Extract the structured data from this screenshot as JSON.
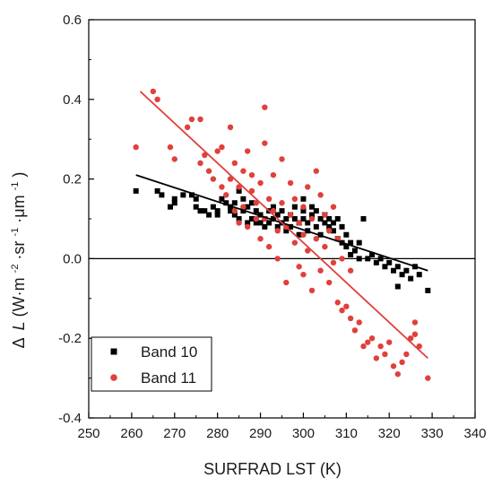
{
  "chart_data": {
    "type": "scatter",
    "title": "",
    "xlabel": "SURFRAD LST (K)",
    "ylabel": {
      "delta": "Δ",
      "var": "L",
      "unit_open": " (W·m",
      "sup1": "-2",
      "mid1": "·sr",
      "sup2": "-1",
      "mid2": "·μm",
      "sup3": "-1",
      "unit_close": ")"
    },
    "xlim": [
      250,
      340
    ],
    "ylim": [
      -0.4,
      0.6
    ],
    "xticks": [
      "250",
      "260",
      "270",
      "280",
      "290",
      "300",
      "310",
      "320",
      "330",
      "340"
    ],
    "yticks": [
      "-0.4",
      "-0.2",
      "0.0",
      "0.2",
      "0.4",
      "0.6"
    ],
    "grid": false,
    "legend_position": "bottom-left",
    "reference_line_y": 0,
    "series": [
      {
        "name": "Band 10",
        "marker": "square",
        "color": "#000000",
        "fit_line": {
          "x": [
            261,
            329
          ],
          "y": [
            0.21,
            -0.03
          ]
        },
        "points": [
          [
            261,
            0.17
          ],
          [
            266,
            0.17
          ],
          [
            267,
            0.16
          ],
          [
            269,
            0.13
          ],
          [
            270,
            0.14
          ],
          [
            270,
            0.15
          ],
          [
            272,
            0.16
          ],
          [
            274,
            0.16
          ],
          [
            275,
            0.13
          ],
          [
            275,
            0.15
          ],
          [
            276,
            0.12
          ],
          [
            277,
            0.12
          ],
          [
            278,
            0.11
          ],
          [
            279,
            0.13
          ],
          [
            280,
            0.12
          ],
          [
            280,
            0.11
          ],
          [
            281,
            0.15
          ],
          [
            282,
            0.14
          ],
          [
            283,
            0.13
          ],
          [
            283,
            0.12
          ],
          [
            284,
            0.14
          ],
          [
            284,
            0.11
          ],
          [
            285,
            0.1
          ],
          [
            285,
            0.17
          ],
          [
            286,
            0.15
          ],
          [
            286,
            0.12
          ],
          [
            287,
            0.13
          ],
          [
            287,
            0.09
          ],
          [
            288,
            0.1
          ],
          [
            288,
            0.14
          ],
          [
            289,
            0.09
          ],
          [
            289,
            0.12
          ],
          [
            290,
            0.09
          ],
          [
            290,
            0.11
          ],
          [
            291,
            0.1
          ],
          [
            291,
            0.08
          ],
          [
            292,
            0.12
          ],
          [
            292,
            0.09
          ],
          [
            293,
            0.1
          ],
          [
            293,
            0.13
          ],
          [
            294,
            0.08
          ],
          [
            294,
            0.11
          ],
          [
            295,
            0.09
          ],
          [
            295,
            0.12
          ],
          [
            296,
            0.1
          ],
          [
            296,
            0.07
          ],
          [
            297,
            0.11
          ],
          [
            297,
            0.08
          ],
          [
            298,
            0.1
          ],
          [
            298,
            0.13
          ],
          [
            299,
            0.09
          ],
          [
            299,
            0.06
          ],
          [
            300,
            0.1
          ],
          [
            300,
            0.12
          ],
          [
            300,
            0.15
          ],
          [
            301,
            0.09
          ],
          [
            301,
            0.07
          ],
          [
            302,
            0.11
          ],
          [
            302,
            0.13
          ],
          [
            303,
            0.08
          ],
          [
            303,
            0.12
          ],
          [
            304,
            0.1
          ],
          [
            304,
            0.06
          ],
          [
            305,
            0.09
          ],
          [
            305,
            0.11
          ],
          [
            306,
            0.08
          ],
          [
            306,
            0.1
          ],
          [
            307,
            0.07
          ],
          [
            307,
            0.09
          ],
          [
            308,
            0.05
          ],
          [
            308,
            0.1
          ],
          [
            309,
            0.04
          ],
          [
            309,
            0.08
          ],
          [
            310,
            0.03
          ],
          [
            310,
            0.06
          ],
          [
            311,
            0.04
          ],
          [
            311,
            0.01
          ],
          [
            312,
            0.02
          ],
          [
            313,
            0.04
          ],
          [
            313,
            0.0
          ],
          [
            314,
            0.1
          ],
          [
            315,
            0.0
          ],
          [
            316,
            0.01
          ],
          [
            317,
            -0.01
          ],
          [
            318,
            0.0
          ],
          [
            319,
            -0.02
          ],
          [
            320,
            -0.01
          ],
          [
            321,
            -0.03
          ],
          [
            322,
            -0.02
          ],
          [
            322,
            -0.07
          ],
          [
            323,
            -0.04
          ],
          [
            324,
            -0.03
          ],
          [
            325,
            -0.05
          ],
          [
            326,
            -0.02
          ],
          [
            327,
            -0.04
          ],
          [
            329,
            -0.08
          ]
        ]
      },
      {
        "name": "Band 11",
        "marker": "circle",
        "color": "#e0403c",
        "fit_line": {
          "x": [
            262,
            329
          ],
          "y": [
            0.42,
            -0.25
          ]
        },
        "points": [
          [
            261,
            0.28
          ],
          [
            265,
            0.42
          ],
          [
            266,
            0.4
          ],
          [
            269,
            0.28
          ],
          [
            270,
            0.25
          ],
          [
            273,
            0.33
          ],
          [
            274,
            0.35
          ],
          [
            276,
            0.35
          ],
          [
            276,
            0.24
          ],
          [
            277,
            0.26
          ],
          [
            278,
            0.22
          ],
          [
            279,
            0.2
          ],
          [
            280,
            0.27
          ],
          [
            281,
            0.18
          ],
          [
            281,
            0.28
          ],
          [
            282,
            0.16
          ],
          [
            283,
            0.33
          ],
          [
            283,
            0.2
          ],
          [
            284,
            0.12
          ],
          [
            284,
            0.24
          ],
          [
            285,
            0.18
          ],
          [
            285,
            0.09
          ],
          [
            286,
            0.22
          ],
          [
            286,
            0.13
          ],
          [
            287,
            0.27
          ],
          [
            287,
            0.08
          ],
          [
            288,
            0.17
          ],
          [
            288,
            0.21
          ],
          [
            289,
            0.1
          ],
          [
            289,
            0.14
          ],
          [
            290,
            0.19
          ],
          [
            290,
            0.05
          ],
          [
            291,
            0.29
          ],
          [
            291,
            0.38
          ],
          [
            291,
            0.1
          ],
          [
            292,
            0.15
          ],
          [
            292,
            0.03
          ],
          [
            293,
            0.12
          ],
          [
            293,
            0.21
          ],
          [
            294,
            0.07
          ],
          [
            294,
            0.0
          ],
          [
            295,
            0.14
          ],
          [
            295,
            0.25
          ],
          [
            296,
            0.08
          ],
          [
            296,
            -0.06
          ],
          [
            297,
            0.11
          ],
          [
            297,
            0.19
          ],
          [
            298,
            0.04
          ],
          [
            298,
            0.15
          ],
          [
            299,
            0.09
          ],
          [
            299,
            -0.02
          ],
          [
            300,
            0.13
          ],
          [
            300,
            0.06
          ],
          [
            300,
            -0.04
          ],
          [
            301,
            0.18
          ],
          [
            301,
            0.02
          ],
          [
            302,
            0.1
          ],
          [
            302,
            -0.08
          ],
          [
            303,
            0.22
          ],
          [
            303,
            0.05
          ],
          [
            304,
            0.16
          ],
          [
            304,
            -0.03
          ],
          [
            305,
            0.11
          ],
          [
            305,
            0.03
          ],
          [
            306,
            0.07
          ],
          [
            306,
            -0.06
          ],
          [
            307,
            0.13
          ],
          [
            307,
            -0.01
          ],
          [
            308,
            0.05
          ],
          [
            308,
            -0.11
          ],
          [
            309,
            -0.13
          ],
          [
            309,
            0.0
          ],
          [
            310,
            -0.12
          ],
          [
            311,
            -0.15
          ],
          [
            311,
            -0.03
          ],
          [
            312,
            -0.18
          ],
          [
            313,
            -0.16
          ],
          [
            314,
            -0.22
          ],
          [
            315,
            -0.21
          ],
          [
            316,
            -0.2
          ],
          [
            317,
            -0.25
          ],
          [
            318,
            -0.22
          ],
          [
            319,
            -0.24
          ],
          [
            320,
            -0.21
          ],
          [
            321,
            -0.27
          ],
          [
            322,
            -0.29
          ],
          [
            323,
            -0.26
          ],
          [
            324,
            -0.24
          ],
          [
            325,
            -0.2
          ],
          [
            326,
            -0.19
          ],
          [
            326,
            -0.16
          ],
          [
            327,
            -0.22
          ],
          [
            329,
            -0.3
          ]
        ]
      }
    ]
  }
}
